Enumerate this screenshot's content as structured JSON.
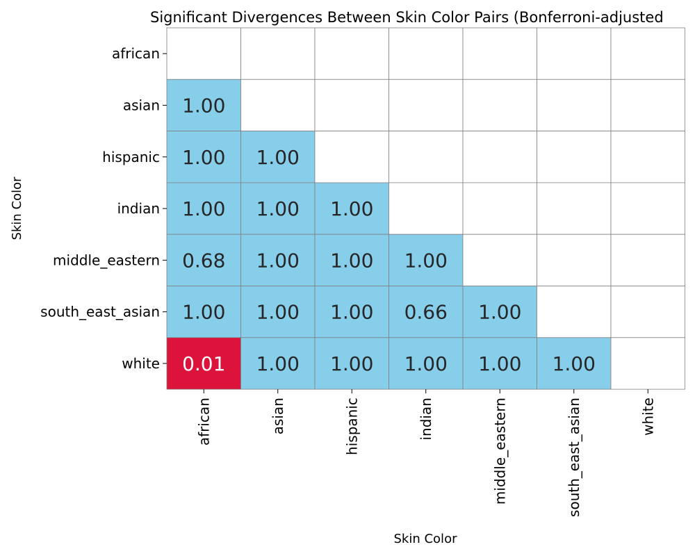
{
  "chart_data": {
    "type": "heatmap",
    "title": "Significant Divergences Between Skin Color Pairs (Bonferroni-adjusted",
    "xlabel": "Skin Color",
    "ylabel": "Skin Color",
    "rows": [
      "african",
      "asian",
      "hispanic",
      "indian",
      "middle_eastern",
      "south_east_asian",
      "white"
    ],
    "columns": [
      "african",
      "asian",
      "hispanic",
      "indian",
      "middle_eastern",
      "south_east_asian",
      "white"
    ],
    "values": [
      [
        null,
        null,
        null,
        null,
        null,
        null,
        null
      ],
      [
        1.0,
        null,
        null,
        null,
        null,
        null,
        null
      ],
      [
        1.0,
        1.0,
        null,
        null,
        null,
        null,
        null
      ],
      [
        1.0,
        1.0,
        1.0,
        null,
        null,
        null,
        null
      ],
      [
        0.68,
        1.0,
        1.0,
        1.0,
        null,
        null,
        null
      ],
      [
        1.0,
        1.0,
        1.0,
        0.66,
        1.0,
        null,
        null
      ],
      [
        0.01,
        1.0,
        1.0,
        1.0,
        1.0,
        1.0,
        null
      ]
    ],
    "significance_threshold": 0.05,
    "colors": {
      "significant": "#dc143c",
      "not_significant": "#87ceeb",
      "masked": "#ffffff",
      "grid": "#808080",
      "text_dark": "#262626",
      "text_light": "#ffffff"
    }
  }
}
